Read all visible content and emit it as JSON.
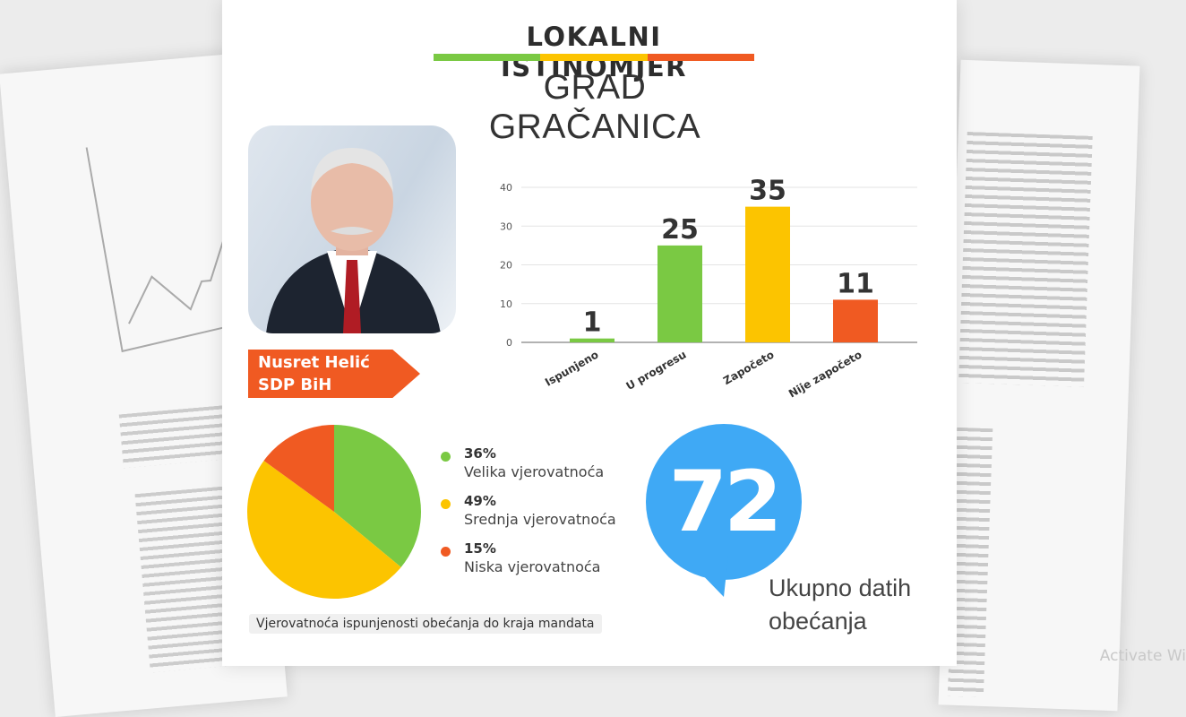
{
  "header": {
    "title": "LOKALNI ISTINOMJER",
    "subtitle": "GRAD GRAČANICA"
  },
  "colors": {
    "green": "#7ac943",
    "yellow": "#fcc400",
    "orange": "#f05a22",
    "blue": "#3fa9f5"
  },
  "politician": {
    "name": "Nusret Helić",
    "party": "SDP BiH"
  },
  "chart_data": [
    {
      "type": "bar",
      "categories": [
        "Ispunjeno",
        "U progresu",
        "Započeto",
        "Nije započeto"
      ],
      "values": [
        1,
        25,
        35,
        11
      ],
      "colors": [
        "#7ac943",
        "#7ac943",
        "#fcc400",
        "#f05a22"
      ],
      "ylim": [
        0,
        40
      ],
      "yticks": [
        0,
        10,
        20,
        30,
        40
      ],
      "grid": true
    },
    {
      "type": "pie",
      "title": "Vjerovatnoća ispunjenosti obećanja do kraja mandata",
      "slices": [
        {
          "label": "Velika vjerovatnoća",
          "value": 36,
          "pct": "36%",
          "color": "#7ac943"
        },
        {
          "label": "Srednja vjerovatnoća",
          "value": 49,
          "pct": "49%",
          "color": "#fcc400"
        },
        {
          "label": "Niska vjerovatnoća",
          "value": 15,
          "pct": "15%",
          "color": "#f05a22"
        }
      ],
      "legend": "right"
    }
  ],
  "total": {
    "value": "72",
    "label_line1": "Ukupno datih",
    "label_line2": "obećanja"
  },
  "watermark": "Activate Wi"
}
